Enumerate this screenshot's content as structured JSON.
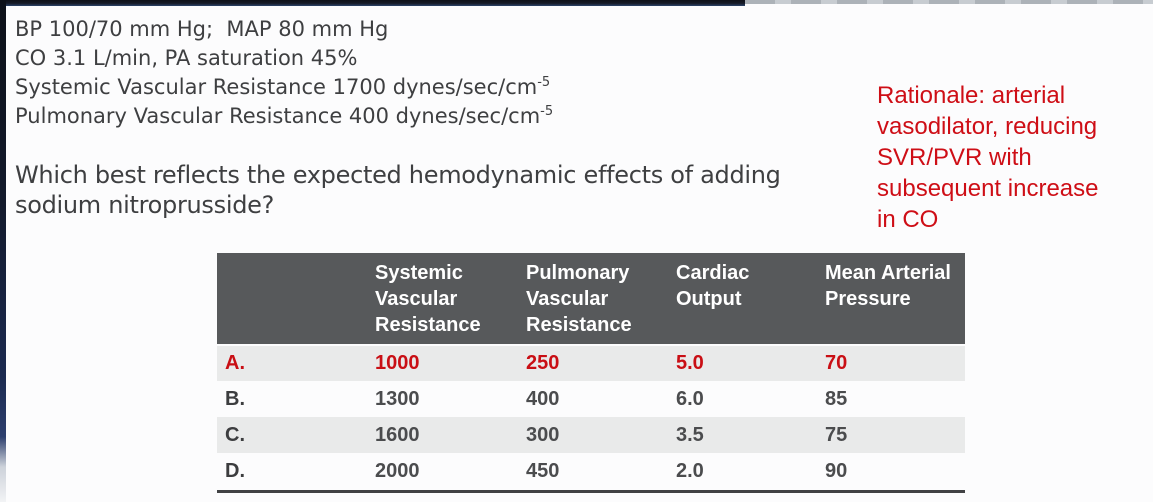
{
  "intro": {
    "lines": [
      {
        "text": "BP 100/70 mm Hg;  MAP 80 mm Hg",
        "sup": ""
      },
      {
        "text": "CO 3.1 L/min, PA saturation 45%",
        "sup": ""
      },
      {
        "text": "Systemic Vascular Resistance 1700 dynes/sec/cm",
        "sup": "-5"
      },
      {
        "text": "Pulmonary Vascular Resistance 400 dynes/sec/cm",
        "sup": "-5"
      }
    ]
  },
  "question": {
    "lines": [
      "Which best reflects the expected hemodynamic effects of adding",
      "sodium nitroprusside?"
    ]
  },
  "rationale": {
    "lines": [
      "Rationale: arterial",
      "vasodilator, reducing",
      "SVR/PVR with",
      "subsequent increase",
      "in CO"
    ],
    "color": "#ce0e16"
  },
  "table": {
    "columns": [
      "Systemic Vascular Resistance",
      "Pulmonary Vascular Resistance",
      "Cardiac Output",
      "Mean Arterial Pressure"
    ],
    "rows": [
      {
        "letter": "A.",
        "values": [
          "1000",
          "250",
          "5.0",
          "70"
        ],
        "highlighted": true
      },
      {
        "letter": "B.",
        "values": [
          "1300",
          "400",
          "6.0",
          "85"
        ],
        "highlighted": false
      },
      {
        "letter": "C.",
        "values": [
          "1600",
          "300",
          "3.5",
          "75"
        ],
        "highlighted": false
      },
      {
        "letter": "D.",
        "values": [
          "2000",
          "450",
          "2.0",
          "90"
        ],
        "highlighted": false
      }
    ],
    "header_bg": "#57595b",
    "alt_row_bg": "#e9eaea",
    "highlight_color": "#c90f15",
    "body_text_color": "#3e3f41"
  }
}
